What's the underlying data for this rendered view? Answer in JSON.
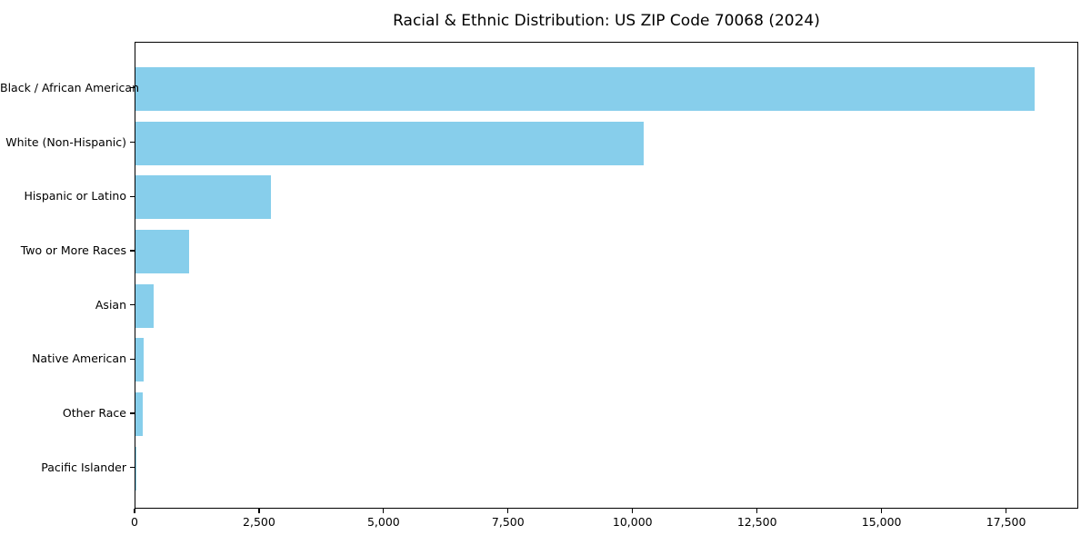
{
  "title": "Racial & Ethnic Distribution: US ZIP Code 70068 (2024)",
  "chart_data": {
    "type": "bar",
    "orientation": "horizontal",
    "title": "Racial & Ethnic Distribution: US ZIP Code 70068 (2024)",
    "xlabel": "",
    "ylabel": "",
    "categories": [
      "Black / African American",
      "White (Non-Hispanic)",
      "Hispanic or Latino",
      "Two or More Races",
      "Asian",
      "Native American",
      "Other Race",
      "Pacific Islander"
    ],
    "values": [
      18050,
      10210,
      2720,
      1080,
      370,
      160,
      145,
      10
    ],
    "bar_color": "#87CEEB",
    "xlim": [
      0,
      18950
    ],
    "x_ticks": [
      0,
      2500,
      5000,
      7500,
      10000,
      12500,
      15000,
      17500
    ],
    "x_tick_labels": [
      "0",
      "2,500",
      "5,000",
      "7,500",
      "10,000",
      "12,500",
      "15,000",
      "17,500"
    ],
    "grid": false,
    "legend_position": "none",
    "text_color": "#000000",
    "background_color": "#ffffff"
  }
}
